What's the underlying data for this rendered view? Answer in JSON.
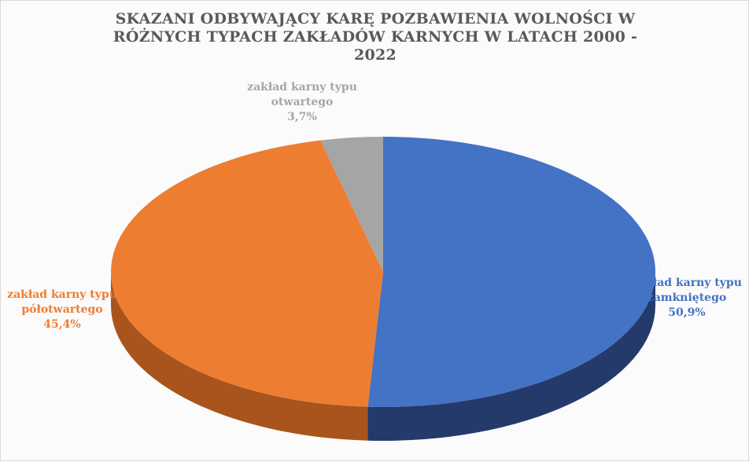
{
  "chart_data": {
    "type": "pie",
    "title_lines": [
      "SKAZANI ODBYWAJĄCY KARĘ POZBAWIENIA WOLNOŚCI W",
      "RÓŻNYCH TYPACH ZAKŁADÓW KARNYCH W LATACH 2000 -",
      "2022"
    ],
    "three_d": true,
    "slices": [
      {
        "id": "zamkniety",
        "label_lines": [
          "zakład karny typu",
          "zamkniętego"
        ],
        "value_text": "50,9%",
        "value": 50.9,
        "color": "#4472C4",
        "side_color": "#233A6B"
      },
      {
        "id": "polotwarty",
        "label_lines": [
          "zakład karny typu",
          "półotwartego"
        ],
        "value_text": "45,4%",
        "value": 45.4,
        "color": "#ED7D31",
        "side_color": "#A9541C"
      },
      {
        "id": "otwarty",
        "label_lines": [
          "zakład karny typu",
          "otwartego"
        ],
        "value_text": "3,7%",
        "value": 3.7,
        "color": "#A5A5A5",
        "side_color": "#6E6E6E"
      }
    ]
  }
}
